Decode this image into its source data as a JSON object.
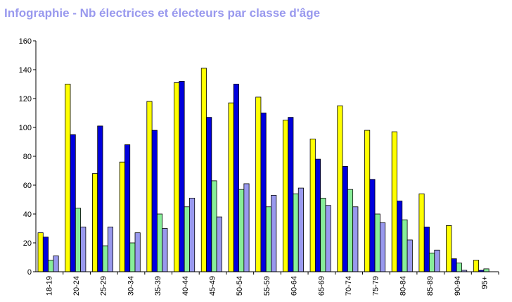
{
  "title": "Infographie - Nb électrices et électeurs par classe d'âge",
  "colors": {
    "series": [
      "#ffff00",
      "#0000dd",
      "#88ee99",
      "#9999ee"
    ],
    "title": "#9999ee",
    "axis": "#000000"
  },
  "chart_data": {
    "type": "bar",
    "title": "Infographie - Nb électrices et électeurs par classe d'âge",
    "xlabel": "",
    "ylabel": "",
    "ylim": [
      0,
      160
    ],
    "yticks": [
      0,
      20,
      40,
      60,
      80,
      100,
      120,
      140,
      160
    ],
    "grid": false,
    "legend": "none",
    "categories": [
      "18-19",
      "20-24",
      "25-29",
      "30-34",
      "35-39",
      "40-44",
      "45-49",
      "50-54",
      "55-59",
      "60-64",
      "65-69",
      "70-74",
      "75-79",
      "80-84",
      "85-89",
      "90-94",
      "95+"
    ],
    "series": [
      {
        "values": [
          27,
          130,
          68,
          76,
          118,
          131,
          141,
          117,
          121,
          105,
          92,
          115,
          98,
          97,
          54,
          32,
          8
        ]
      },
      {
        "values": [
          24,
          95,
          101,
          88,
          98,
          132,
          107,
          130,
          110,
          107,
          78,
          73,
          64,
          49,
          31,
          9,
          1
        ]
      },
      {
        "values": [
          8,
          44,
          18,
          20,
          40,
          45,
          63,
          57,
          45,
          54,
          51,
          57,
          40,
          36,
          13,
          6,
          2
        ]
      },
      {
        "values": [
          11,
          31,
          31,
          27,
          30,
          51,
          38,
          61,
          53,
          58,
          46,
          45,
          34,
          22,
          15,
          1,
          0
        ]
      }
    ]
  }
}
